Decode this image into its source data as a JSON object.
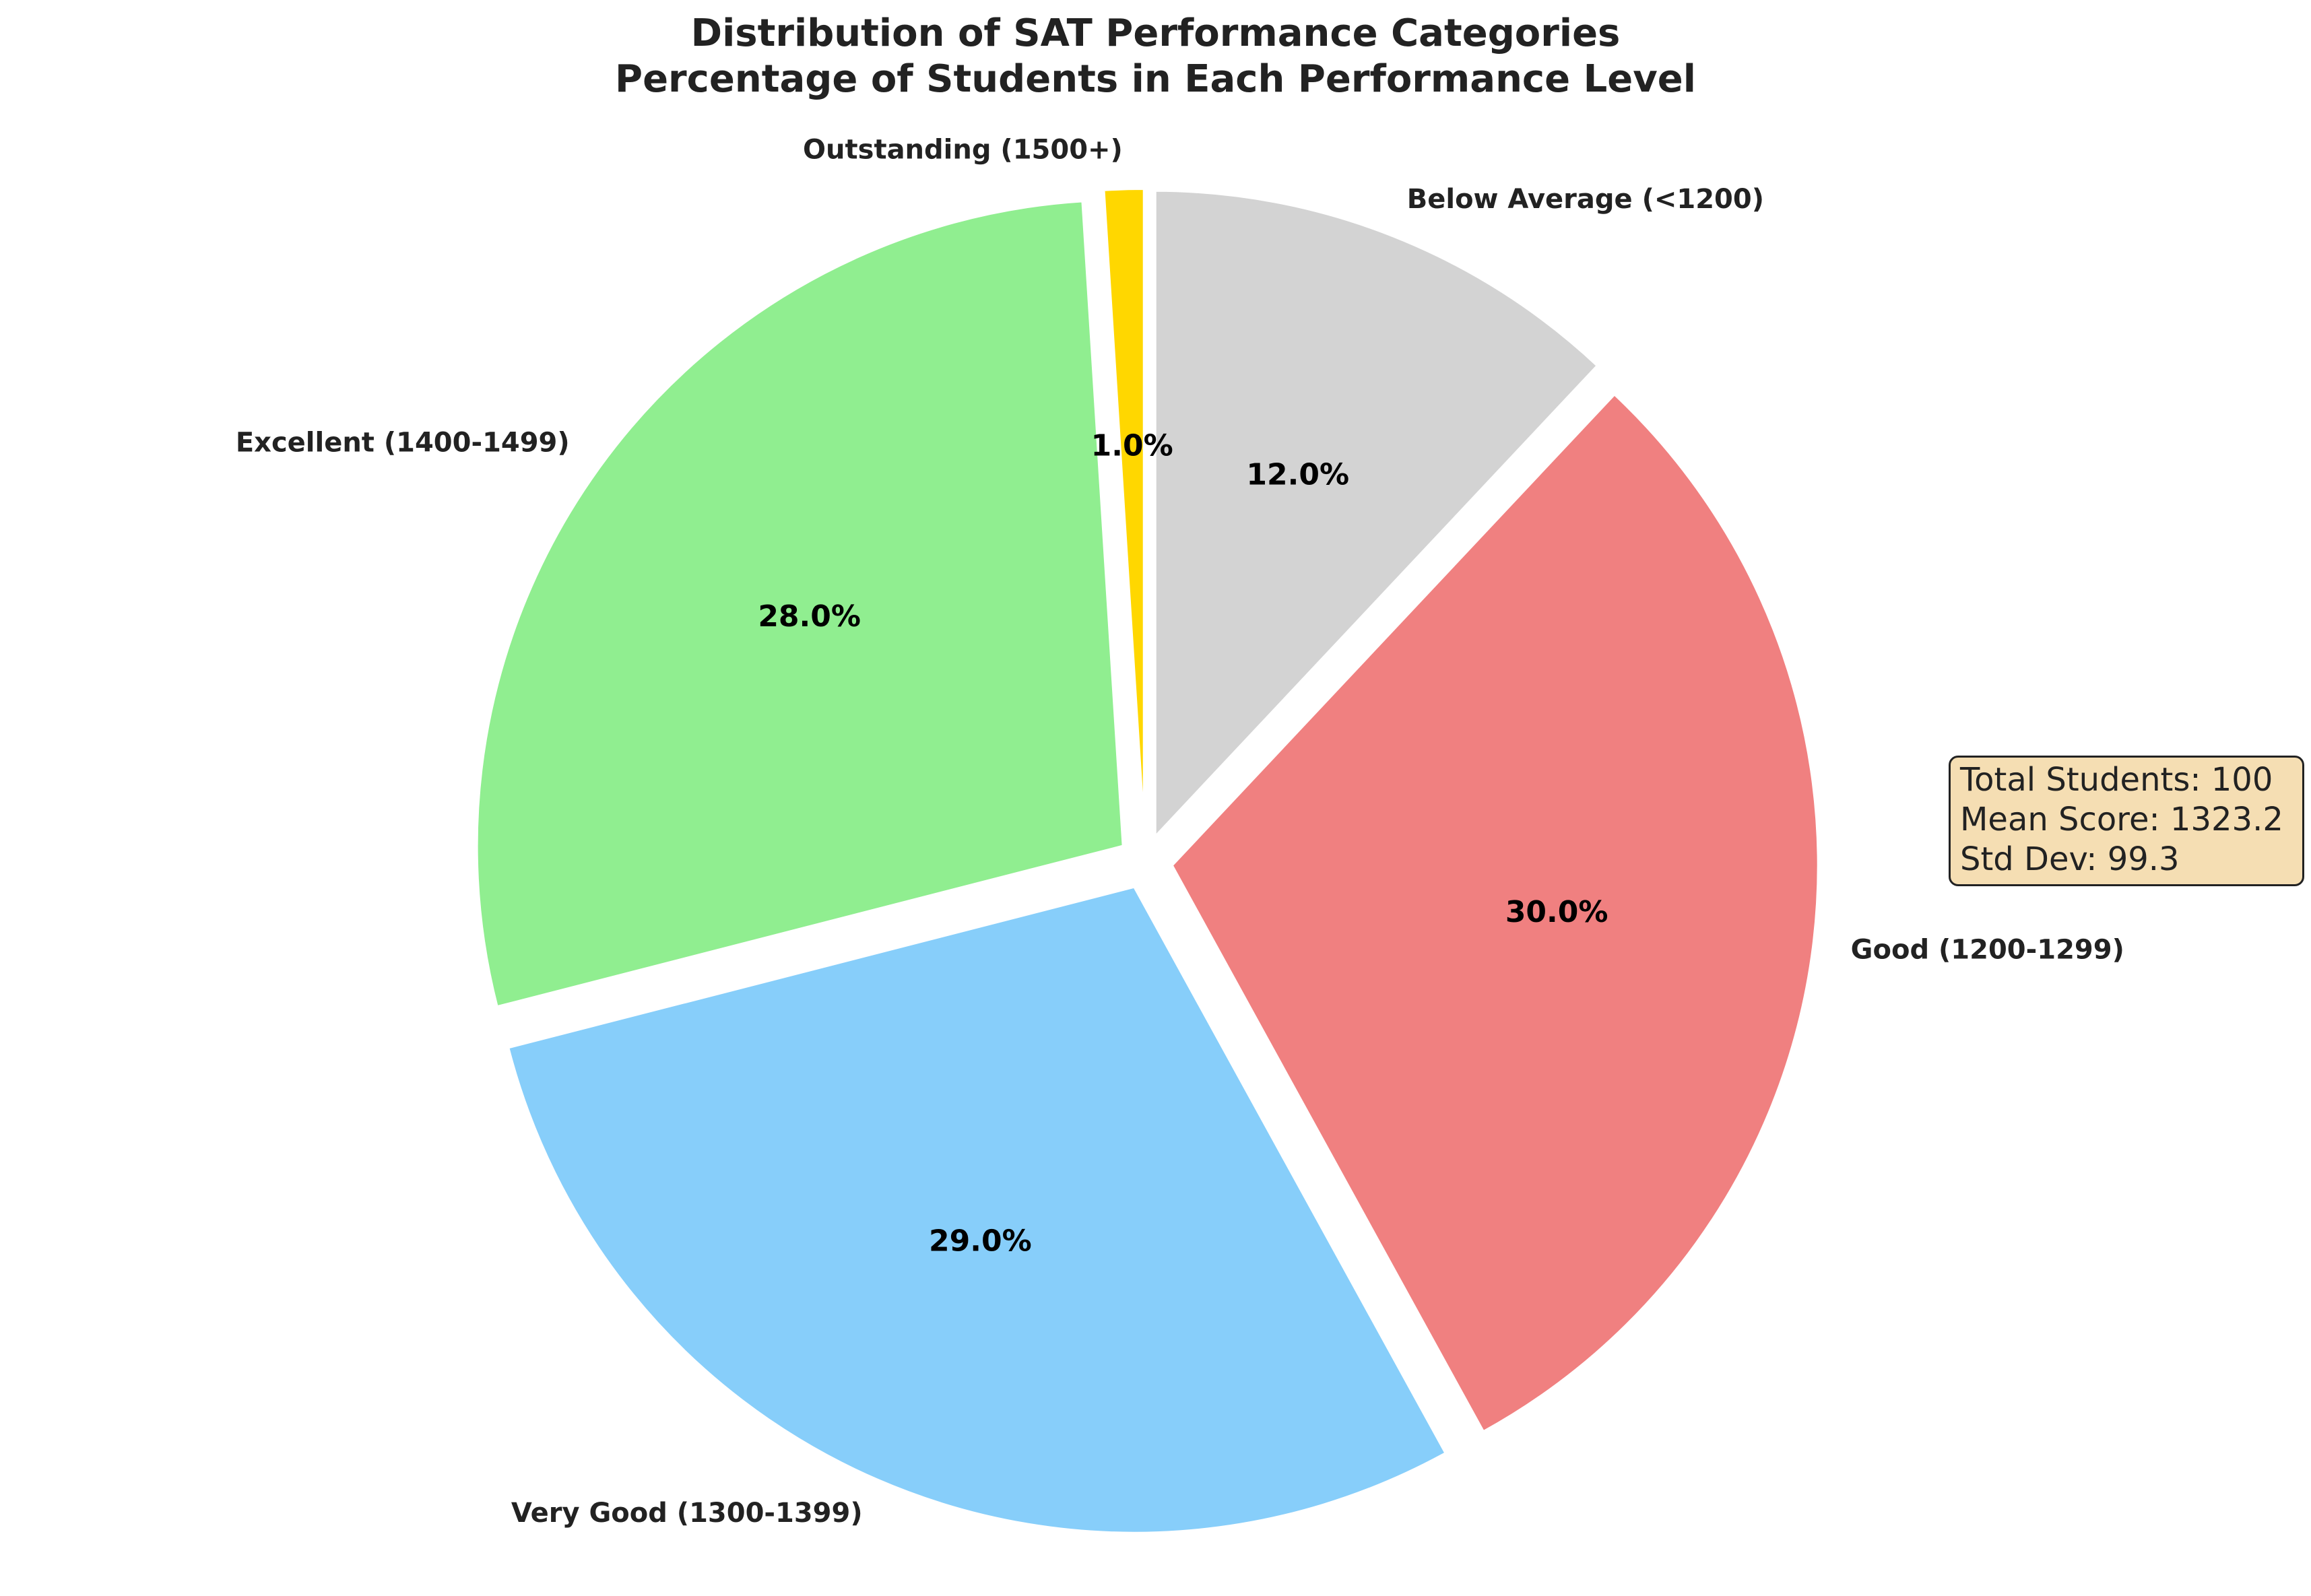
{
  "chart_data": {
    "type": "pie",
    "title": "Distribution of SAT Performance Categories",
    "subtitle": "Percentage of Students in Each Performance Level",
    "slices": [
      {
        "label": "Below Average (<1200)",
        "value": 12.0,
        "pct_label": "12.0%",
        "color": "#d3d3d3"
      },
      {
        "label": "Good (1200-1299)",
        "value": 30.0,
        "pct_label": "30.0%",
        "color": "#f08080"
      },
      {
        "label": "Very Good (1300-1399)",
        "value": 29.0,
        "pct_label": "29.0%",
        "color": "#87cefa"
      },
      {
        "label": "Excellent (1400-1499)",
        "value": 28.0,
        "pct_label": "28.0%",
        "color": "#90ee90"
      },
      {
        "label": "Outstanding (1500+)",
        "value": 1.0,
        "pct_label": "1.0%",
        "color": "#ffd700"
      }
    ],
    "direction": "clockwise",
    "start": "top",
    "exploded": true
  },
  "stats": {
    "total": "Total Students: 100",
    "mean": "Mean Score: 1323.2",
    "std": "Std Dev: 99.3"
  }
}
